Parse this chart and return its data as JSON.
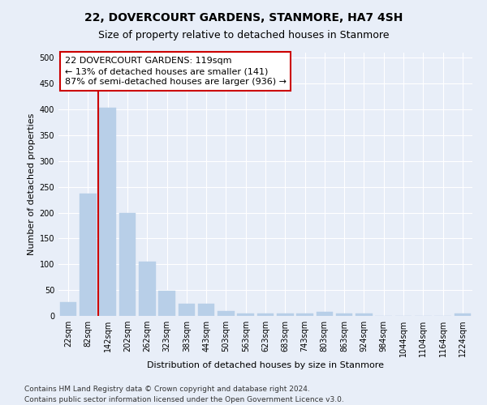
{
  "title": "22, DOVERCOURT GARDENS, STANMORE, HA7 4SH",
  "subtitle": "Size of property relative to detached houses in Stanmore",
  "xlabel": "Distribution of detached houses by size in Stanmore",
  "ylabel": "Number of detached properties",
  "bar_labels": [
    "22sqm",
    "82sqm",
    "142sqm",
    "202sqm",
    "262sqm",
    "323sqm",
    "383sqm",
    "443sqm",
    "503sqm",
    "563sqm",
    "623sqm",
    "683sqm",
    "743sqm",
    "803sqm",
    "863sqm",
    "924sqm",
    "984sqm",
    "1044sqm",
    "1104sqm",
    "1164sqm",
    "1224sqm"
  ],
  "bar_values": [
    26,
    237,
    403,
    200,
    105,
    49,
    24,
    24,
    10,
    5,
    5,
    5,
    5,
    8,
    5,
    5,
    0,
    0,
    0,
    0,
    5
  ],
  "bar_color": "#b8cfe8",
  "bar_edgecolor": "#b8cfe8",
  "vline_color": "#cc0000",
  "annotation_text": "22 DOVERCOURT GARDENS: 119sqm\n← 13% of detached houses are smaller (141)\n87% of semi-detached houses are larger (936) →",
  "annotation_box_facecolor": "#ffffff",
  "annotation_box_edgecolor": "#cc0000",
  "ylim": [
    0,
    510
  ],
  "yticks": [
    0,
    50,
    100,
    150,
    200,
    250,
    300,
    350,
    400,
    450,
    500
  ],
  "footer1": "Contains HM Land Registry data © Crown copyright and database right 2024.",
  "footer2": "Contains public sector information licensed under the Open Government Licence v3.0.",
  "bg_color": "#e8eef8",
  "plot_bg_color": "#e8eef8",
  "grid_color": "#ffffff",
  "title_fontsize": 10,
  "subtitle_fontsize": 9,
  "axis_label_fontsize": 8,
  "tick_fontsize": 7,
  "annotation_fontsize": 8,
  "footer_fontsize": 6.5
}
